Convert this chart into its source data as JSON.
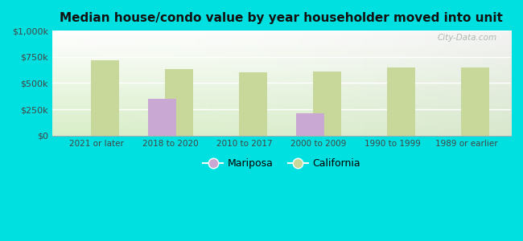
{
  "title": "Median house/condo value by year householder moved into unit",
  "categories": [
    "2021 or later",
    "2018 to 2020",
    "2010 to 2017",
    "2000 to 2009",
    "1990 to 1999",
    "1989 or earlier"
  ],
  "mariposa_values": [
    null,
    350000,
    null,
    215000,
    null,
    null
  ],
  "california_values": [
    720000,
    630000,
    600000,
    610000,
    650000,
    650000
  ],
  "mariposa_color": "#c9a8d4",
  "california_color": "#c8d89a",
  "background_color": "#00e0e0",
  "plot_bg_top": "#ffffff",
  "plot_bg_bottom": "#d8eec8",
  "ylim": [
    0,
    1000000
  ],
  "yticks": [
    0,
    250000,
    500000,
    750000,
    1000000
  ],
  "ytick_labels": [
    "$0",
    "$250k",
    "$500k",
    "$750k",
    "$1,000k"
  ],
  "bar_width": 0.38,
  "watermark": "City-Data.com",
  "legend_labels": [
    "Mariposa",
    "California"
  ]
}
